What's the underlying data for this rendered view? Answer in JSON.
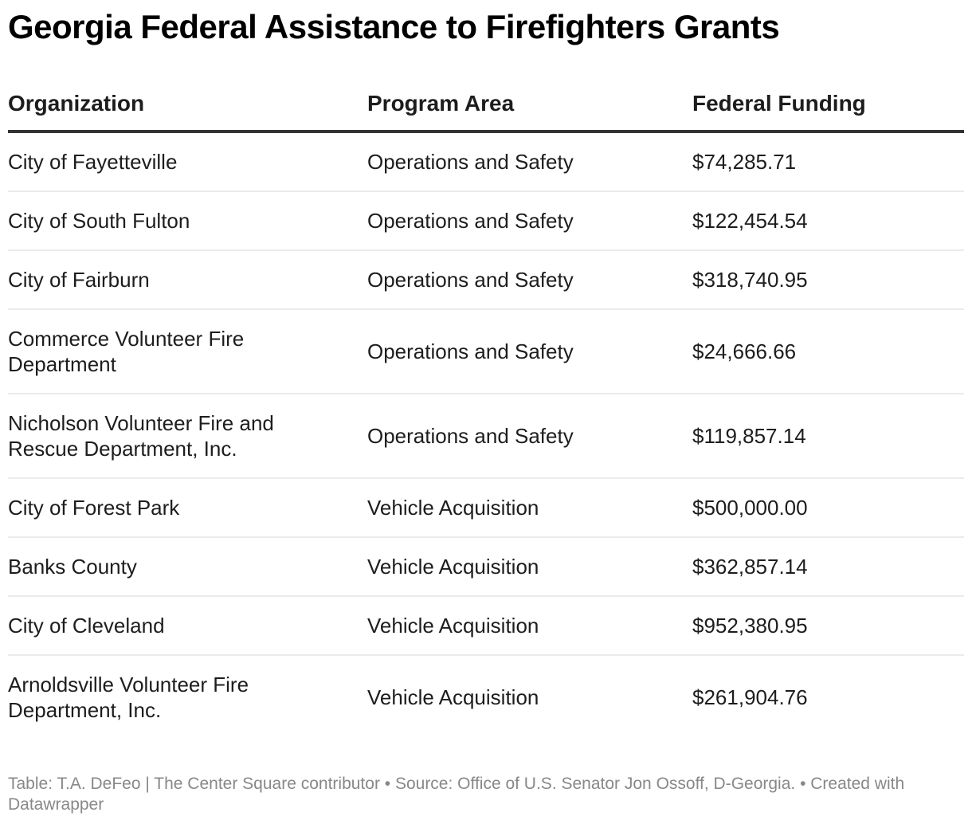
{
  "title": "Georgia Federal Assistance to Firefighters Grants",
  "table": {
    "headers": [
      "Organization",
      "Program Area",
      "Federal Funding"
    ],
    "rows": [
      {
        "organization": "City of Fayetteville",
        "program_area": "Operations and Safety",
        "funding": "$74,285.71"
      },
      {
        "organization": "City of South Fulton",
        "program_area": "Operations and Safety",
        "funding": "$122,454.54"
      },
      {
        "organization": "City of Fairburn",
        "program_area": "Operations and Safety",
        "funding": "$318,740.95"
      },
      {
        "organization": "Commerce Volunteer Fire Department",
        "program_area": "Operations and Safety",
        "funding": "$24,666.66"
      },
      {
        "organization": "Nicholson Volunteer Fire and Rescue Department, Inc.",
        "program_area": "Operations and Safety",
        "funding": "$119,857.14"
      },
      {
        "organization": "City of Forest Park",
        "program_area": "Vehicle Acquisition",
        "funding": "$500,000.00"
      },
      {
        "organization": "Banks County",
        "program_area": "Vehicle Acquisition",
        "funding": "$362,857.14"
      },
      {
        "organization": "City of Cleveland",
        "program_area": "Vehicle Acquisition",
        "funding": "$952,380.95"
      },
      {
        "organization": "Arnoldsville Volunteer Fire Department, Inc.",
        "program_area": "Vehicle Acquisition",
        "funding": "$261,904.76"
      }
    ]
  },
  "footer": "Table: T.A. DeFeo | The Center Square contributor • Source: Office of U.S. Senator Jon Ossoff, D-Georgia. • Created with Datawrapper",
  "chart_data": {
    "type": "table",
    "title": "Georgia Federal Assistance to Firefighters Grants",
    "columns": [
      "Organization",
      "Program Area",
      "Federal Funding"
    ],
    "rows": [
      [
        "City of Fayetteville",
        "Operations and Safety",
        74285.71
      ],
      [
        "City of South Fulton",
        "Operations and Safety",
        122454.54
      ],
      [
        "City of Fairburn",
        "Operations and Safety",
        318740.95
      ],
      [
        "Commerce Volunteer Fire Department",
        "Operations and Safety",
        24666.66
      ],
      [
        "Nicholson Volunteer Fire and Rescue Department, Inc.",
        "Operations and Safety",
        119857.14
      ],
      [
        "City of Forest Park",
        "Vehicle Acquisition",
        500000.0
      ],
      [
        "Banks County",
        "Vehicle Acquisition",
        362857.14
      ],
      [
        "City of Cleveland",
        "Vehicle Acquisition",
        952380.95
      ],
      [
        "Arnoldsville Volunteer Fire Department, Inc.",
        "Vehicle Acquisition",
        261904.76
      ]
    ],
    "source": "Office of U.S. Senator Jon Ossoff, D-Georgia."
  }
}
